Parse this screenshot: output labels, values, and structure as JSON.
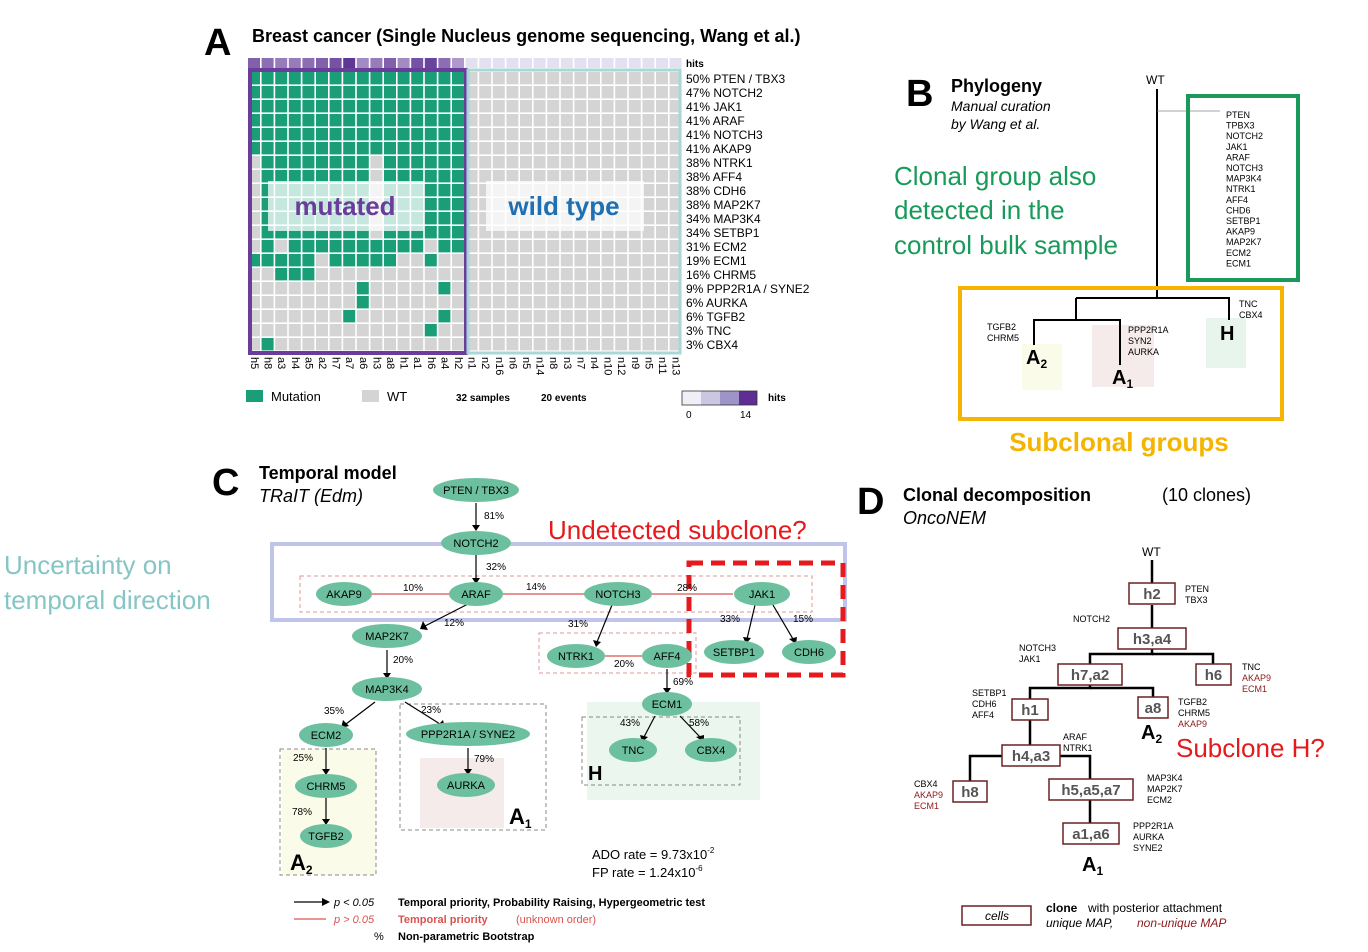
{
  "colors": {
    "mutation": "#1a9e78",
    "wt": "#d4d4d4",
    "purple": "#6a3d9a",
    "wtText": "#1f6fb3",
    "green": "#1a9a5a",
    "gold": "#f4b400",
    "red": "#e41a1c",
    "teal": "#86c5c5",
    "node": "#6cc0a0",
    "dark": "#6b2020"
  },
  "panelA": {
    "letter": "A",
    "title": "Breast cancer (Single Nucleus genome sequencing, Wang et al.)",
    "hits_label": "hits",
    "mutated_label": "mutated",
    "wildtype_label": "wild type",
    "genes": [
      "50% PTEN / TBX3",
      "47% NOTCH2",
      "41% JAK1",
      "41% ARAF",
      "41% NOTCH3",
      "41% AKAP9",
      "38% NTRK1",
      "38% AFF4",
      "38% CDH6",
      "38% MAP2K7",
      "34% MAP3K4",
      "34% SETBP1",
      "31% ECM2",
      "19% ECM1",
      "16% CHRM5",
      "9% PPP2R1A / SYNE2",
      "6% AURKA",
      "6% TGFB2",
      "3% TNC",
      "3% CBX4"
    ],
    "samples": [
      "h5",
      "h8",
      "a3",
      "h4",
      "a5",
      "a2",
      "h7",
      "a7",
      "a6",
      "h3",
      "a8",
      "h1",
      "a1",
      "h6",
      "a4",
      "h2",
      "n1",
      "n2",
      "n16",
      "n6",
      "n5",
      "n14",
      "n8",
      "n3",
      "n7",
      "n4",
      "n10",
      "n12",
      "n9",
      "n5",
      "n11",
      "n13"
    ],
    "mutated_count": 16,
    "matrix": [
      "1111111111111111",
      "1111111111111111",
      "1111111111111111",
      "1111111111111111",
      "1111111111111111",
      "1111111111111111",
      "0111111110111111",
      "0111111110111111",
      "0111111110111111",
      "0111111110111111",
      "0111111110111111",
      "0111111110111111",
      "0101111111111011",
      "1111101111100100",
      "0011100000000000",
      "0000000010000010",
      "0000000010000000",
      "0000000100000010",
      "0000000000000100",
      "0100000000000000"
    ],
    "hits_bar": [
      10,
      9,
      8,
      8,
      9,
      10,
      11,
      13,
      7,
      8,
      10,
      7,
      11,
      12,
      9,
      6
    ],
    "legend_mutation": "Mutation",
    "legend_wt": "WT",
    "samples_text": "32 samples",
    "events_text": "20 events",
    "scale_label": "hits",
    "scale_min": "0",
    "scale_max": "14"
  },
  "panelB": {
    "letter": "B",
    "title": "Phylogeny",
    "subtitle1": "Manual curation",
    "subtitle2": "by Wang et al.",
    "wt": "WT",
    "clonal_genes": [
      "PTEN",
      "TPBX3",
      "NOTCH2",
      "JAK1",
      "ARAF",
      "NOTCH3",
      "MAP3K4",
      "NTRK1",
      "AFF4",
      "CHD6",
      "SETBP1",
      "AKAP9",
      "MAP2K7",
      "ECM2",
      "ECM1"
    ],
    "clonal_note": [
      "Clonal group also",
      "detected in the",
      "control bulk sample"
    ],
    "a2_genes": [
      "TGFB2",
      "CHRM5"
    ],
    "a1_genes": [
      "PPP2R1A",
      "SYN2",
      "AURKA"
    ],
    "h_genes": [
      "TNC",
      "CBX4"
    ],
    "a2": "A",
    "a2_sub": "2",
    "a1": "A",
    "a1_sub": "1",
    "h": "H",
    "subclonal": "Subclonal groups"
  },
  "panelC": {
    "letter": "C",
    "title": "Temporal model",
    "subtitle": "TRaIT (Edm)",
    "undetected": "Undetected subclone?",
    "uncertainty": [
      "Uncertainty on",
      "temporal direction"
    ],
    "nodes": {
      "pten": "PTEN / TBX3",
      "notch2": "NOTCH2",
      "akap9": "AKAP9",
      "araf": "ARAF",
      "notch3": "NOTCH3",
      "jak1": "JAK1",
      "map2k7": "MAP2K7",
      "ntrk1": "NTRK1",
      "aff4": "AFF4",
      "setbp1": "SETBP1",
      "cdh6": "CDH6",
      "map3k4": "MAP3K4",
      "ecm1": "ECM1",
      "ecm2": "ECM2",
      "ppp": "PPP2R1A / SYNE2",
      "tnc": "TNC",
      "cbx4": "CBX4",
      "chrm5": "CHRM5",
      "aurka": "AURKA",
      "tgfb2": "TGFB2"
    },
    "pcts": {
      "p81": "81%",
      "p32": "32%",
      "p10": "10%",
      "p14": "14%",
      "p28": "28%",
      "p12": "12%",
      "p31": "31%",
      "p33": "33%",
      "p15": "15%",
      "p20a": "20%",
      "p20b": "20%",
      "p69": "69%",
      "p35": "35%",
      "p23": "23%",
      "p43": "43%",
      "p58": "58%",
      "p25": "25%",
      "p79": "79%",
      "p78": "78%"
    },
    "a1": "A",
    "a1_sub": "1",
    "a2": "A",
    "a2_sub": "2",
    "h": "H",
    "ado": "ADO rate = 9.73x10",
    "ado_exp": "-2",
    "fp": "FP rate = 1.24x10",
    "fp_exp": "-6",
    "legend1_p": "p < 0.05",
    "legend1_text": "Temporal priority, Probability Raising, Hypergeometric test",
    "legend2_p": "p > 0.05",
    "legend2_text": "Temporal priority",
    "legend2_extra": "(unknown order)",
    "legend3_sym": "%",
    "legend3_text": "Non-parametric Bootstrap"
  },
  "panelD": {
    "letter": "D",
    "title": "Clonal decomposition",
    "count": "(10 clones)",
    "subtitle": "OncoNEM",
    "wt": "WT",
    "h2": "h2",
    "h2_genes": [
      "PTEN",
      "TBX3"
    ],
    "notch2": "NOTCH2",
    "h3a4": "h3,a4",
    "n3jak": [
      "NOTCH3",
      "JAK1"
    ],
    "h7a2": "h7,a2",
    "h6": "h6",
    "h6_genes": [
      "TNC"
    ],
    "h6_red": [
      "AKAP9",
      "ECM1"
    ],
    "h1": "h1",
    "h1_genes": [
      "SETBP1",
      "CDH6",
      "AFF4"
    ],
    "a8": "a8",
    "a8_genes": [
      "TGFB2",
      "CHRM5"
    ],
    "a8_red": [
      "AKAP9"
    ],
    "a2": "A",
    "a2_sub": "2",
    "subclone_h": "Subclone H?",
    "h4a3": "h4,a3",
    "h4a3_genes": [
      "ARAF",
      "NTRK1"
    ],
    "h8": "h8",
    "h8_genes": [
      "CBX4"
    ],
    "h8_red": [
      "AKAP9",
      "ECM1"
    ],
    "h5a5a7": "h5,a5,a7",
    "h5_genes": [
      "MAP3K4",
      "MAP2K7",
      "ECM2"
    ],
    "a1a6": "a1,a6",
    "a1_genes": [
      "PPP2R1A",
      "AURKA",
      "SYNE2"
    ],
    "a1": "A",
    "a1_sub": "1",
    "legend_cells": "cells",
    "legend_bold": "clone",
    "legend_rest": "with posterior attachment",
    "legend_unique": "unique MAP,",
    "legend_nonunique": "non-unique MAP"
  }
}
